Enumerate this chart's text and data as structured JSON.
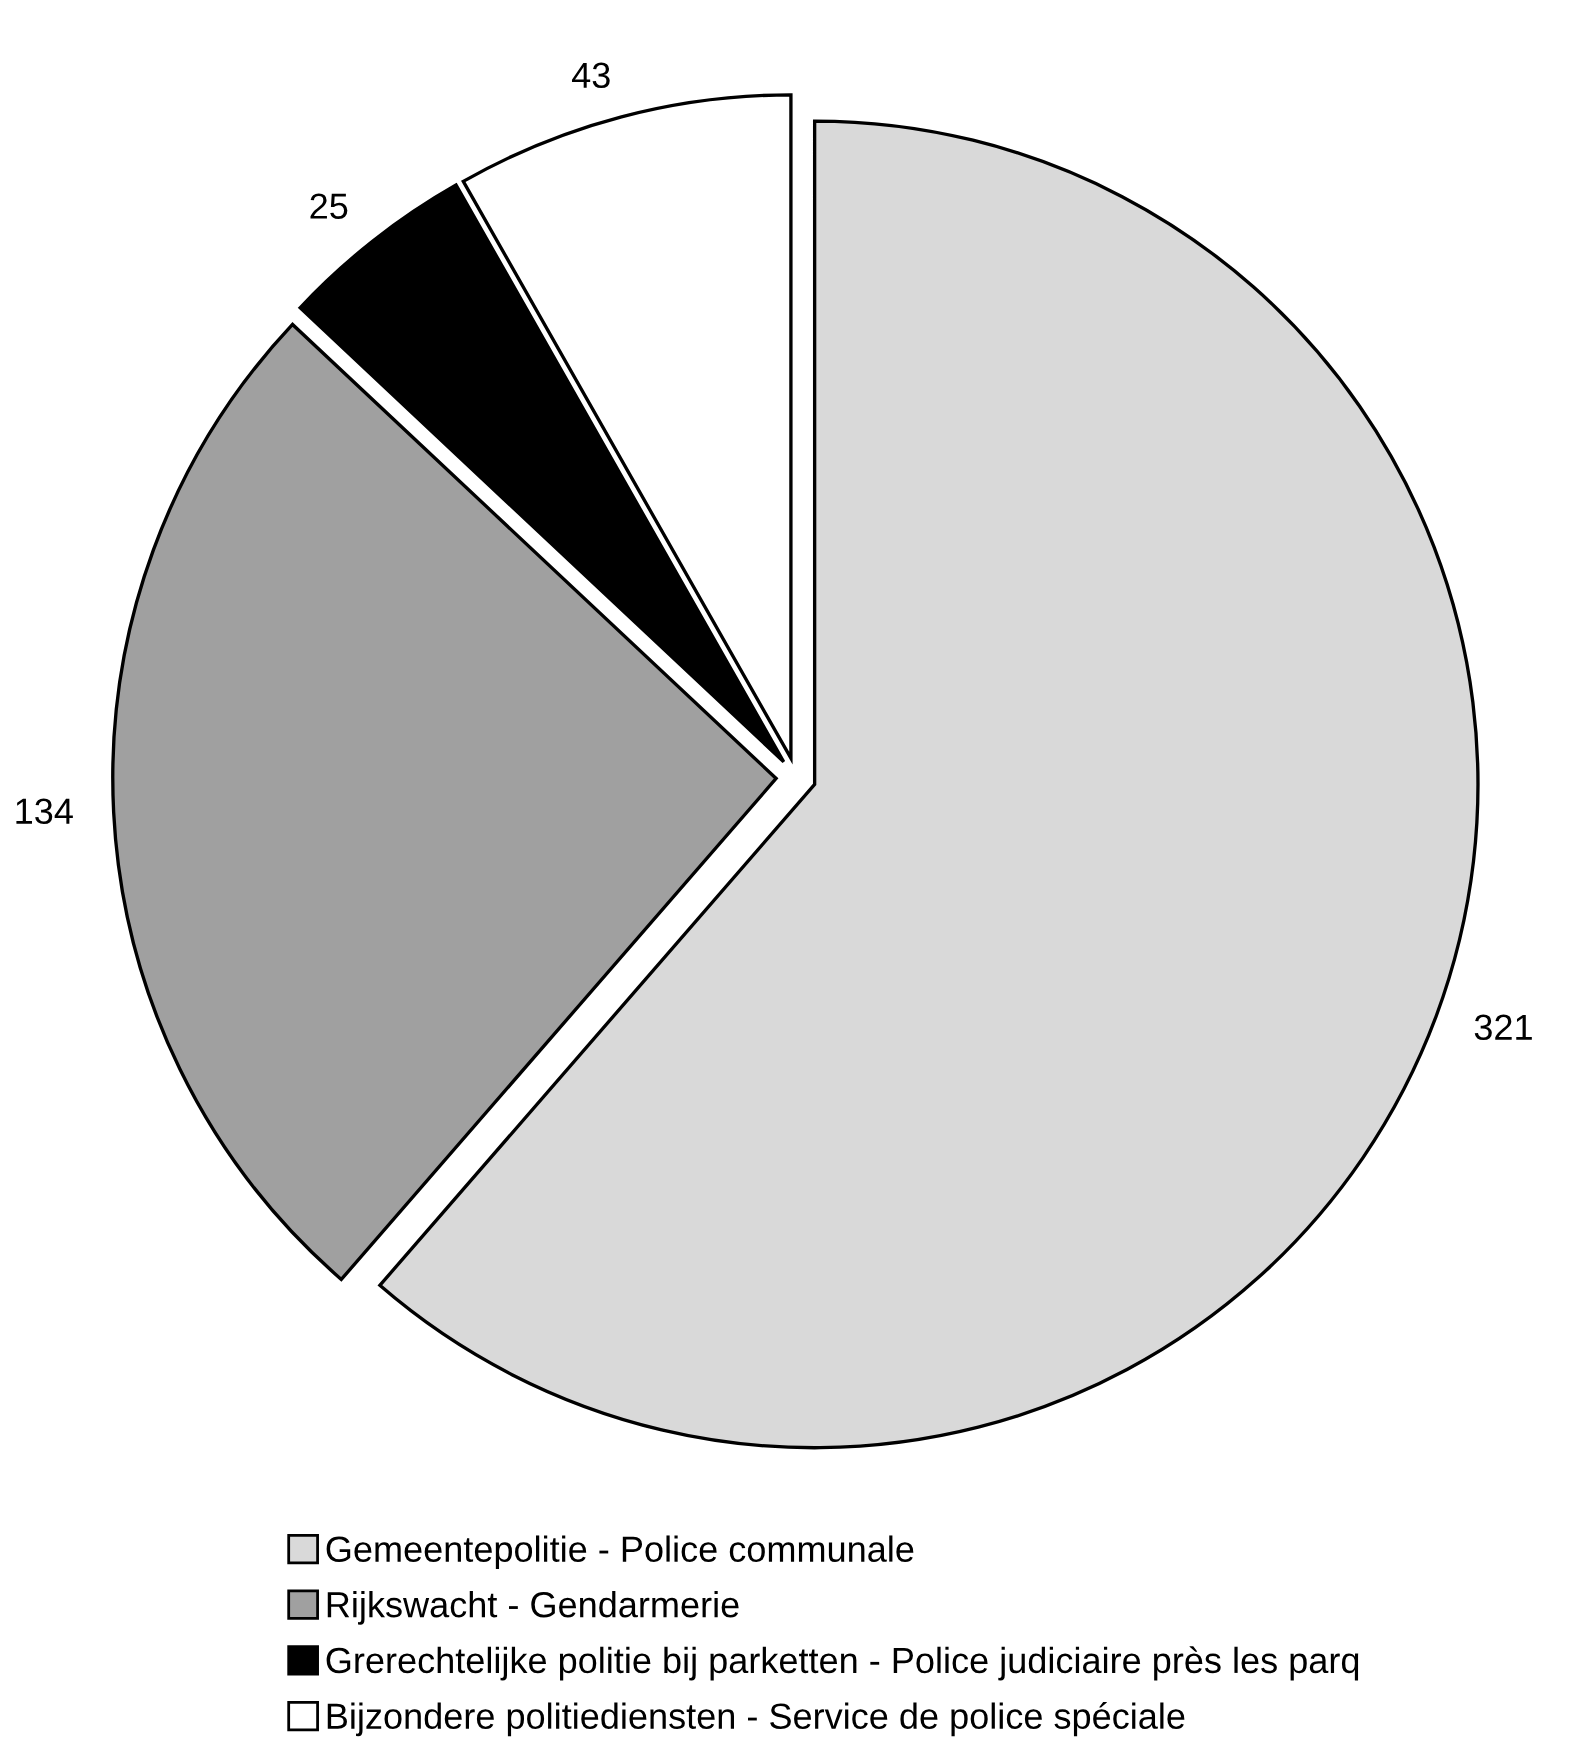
{
  "chart_data": {
    "type": "pie",
    "categories": [
      "Gemeentepolitie - Police communale",
      "Rijkswacht - Gendarmerie",
      "Grerechtelijke politie bij parketten - Police judiciaire près les parq",
      "Bijzondere politiediensten - Service de police spéciale"
    ],
    "values": [
      321,
      134,
      25,
      43
    ],
    "colors": [
      "#d9d9d9",
      "#a0a0a0",
      "#000000",
      "#ffffff"
    ],
    "data_labels": true,
    "legend": "bottom"
  }
}
